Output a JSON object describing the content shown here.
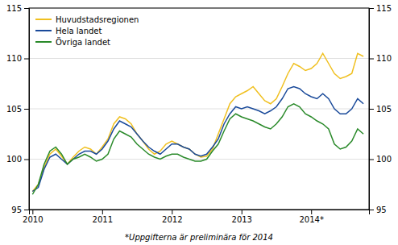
{
  "chart_data": {
    "type": "line",
    "footnote": "*Uppgifterna är preliminära för 2014",
    "x": [
      2010.0,
      2010.0833333333333,
      2010.1666666666667,
      2010.25,
      2010.3333333333333,
      2010.4166666666667,
      2010.5,
      2010.5833333333333,
      2010.6666666666667,
      2010.75,
      2010.8333333333333,
      2010.9166666666667,
      2011.0,
      2011.0833333333333,
      2011.1666666666667,
      2011.25,
      2011.3333333333333,
      2011.4166666666667,
      2011.5,
      2011.5833333333333,
      2011.6666666666667,
      2011.75,
      2011.8333333333333,
      2011.9166666666667,
      2012.0,
      2012.0833333333333,
      2012.1666666666667,
      2012.25,
      2012.3333333333333,
      2012.4166666666667,
      2012.5,
      2012.5833333333333,
      2012.6666666666667,
      2012.75,
      2012.8333333333333,
      2012.9166666666667,
      2013.0,
      2013.0833333333333,
      2013.1666666666667,
      2013.25,
      2013.3333333333333,
      2013.4166666666667,
      2013.5,
      2013.5833333333333,
      2013.6666666666667,
      2013.75,
      2013.8333333333333,
      2013.9166666666667,
      2014.0,
      2014.0833333333333,
      2014.1666666666667,
      2014.25,
      2014.3333333333333,
      2014.4166666666667,
      2014.5,
      2014.5833333333333,
      2014.6666666666667,
      2014.75
    ],
    "series": [
      {
        "name": "Huvudstadsregionen",
        "color": "#f0c020",
        "values": [
          96.8,
          97.5,
          99.2,
          100.5,
          101.0,
          100.3,
          99.5,
          100.2,
          100.8,
          101.2,
          101.0,
          100.5,
          101.2,
          102.0,
          103.5,
          104.2,
          104.0,
          103.5,
          102.5,
          101.8,
          101.0,
          100.5,
          100.8,
          101.5,
          101.8,
          101.5,
          101.2,
          101.0,
          100.5,
          100.2,
          100.3,
          101.0,
          102.5,
          104.0,
          105.5,
          106.2,
          106.5,
          106.8,
          107.2,
          106.5,
          105.8,
          105.5,
          106.0,
          107.2,
          108.5,
          109.5,
          109.2,
          108.8,
          109.0,
          109.5,
          110.5,
          109.5,
          108.5,
          108.0,
          108.2,
          108.5,
          110.5,
          110.2
        ]
      },
      {
        "name": "Hela landet",
        "color": "#1a4a9a",
        "values": [
          96.8,
          97.2,
          99.0,
          100.2,
          100.5,
          100.0,
          99.5,
          100.0,
          100.5,
          100.8,
          100.8,
          100.5,
          101.0,
          101.8,
          103.0,
          103.8,
          103.5,
          103.2,
          102.5,
          101.8,
          101.2,
          100.8,
          100.5,
          101.0,
          101.5,
          101.5,
          101.2,
          101.0,
          100.5,
          100.3,
          100.5,
          101.2,
          102.0,
          103.5,
          104.5,
          105.2,
          105.0,
          105.2,
          105.0,
          104.8,
          104.5,
          104.8,
          105.2,
          106.0,
          107.0,
          107.2,
          107.0,
          106.5,
          106.2,
          106.0,
          106.5,
          106.0,
          105.0,
          104.5,
          104.5,
          105.0,
          106.0,
          105.5
        ]
      },
      {
        "name": "Övriga landet",
        "color": "#2a8a2a",
        "values": [
          96.5,
          97.5,
          99.5,
          100.8,
          101.2,
          100.5,
          99.5,
          100.0,
          100.2,
          100.5,
          100.2,
          99.8,
          100.0,
          100.5,
          102.0,
          102.8,
          102.5,
          102.2,
          101.5,
          101.0,
          100.5,
          100.2,
          100.0,
          100.3,
          100.5,
          100.5,
          100.2,
          100.0,
          99.8,
          99.8,
          100.0,
          100.8,
          101.5,
          102.8,
          104.0,
          104.5,
          104.2,
          104.0,
          103.8,
          103.5,
          103.2,
          103.0,
          103.5,
          104.2,
          105.2,
          105.5,
          105.2,
          104.5,
          104.2,
          103.8,
          103.5,
          103.0,
          101.5,
          101.0,
          101.2,
          101.8,
          103.0,
          102.5
        ]
      }
    ],
    "xlim": [
      2009.95,
      2014.83
    ],
    "xticks": [
      2010,
      2011,
      2012,
      2013,
      {
        "value": 2014,
        "label": "2014*"
      }
    ],
    "ylim": [
      95,
      115
    ],
    "yticks": [
      95,
      100,
      105,
      110,
      115
    ],
    "y2lim": [
      95,
      115
    ],
    "y2ticks": [
      95,
      100,
      105,
      110,
      115
    ],
    "grid": true,
    "legend": "top-left"
  }
}
